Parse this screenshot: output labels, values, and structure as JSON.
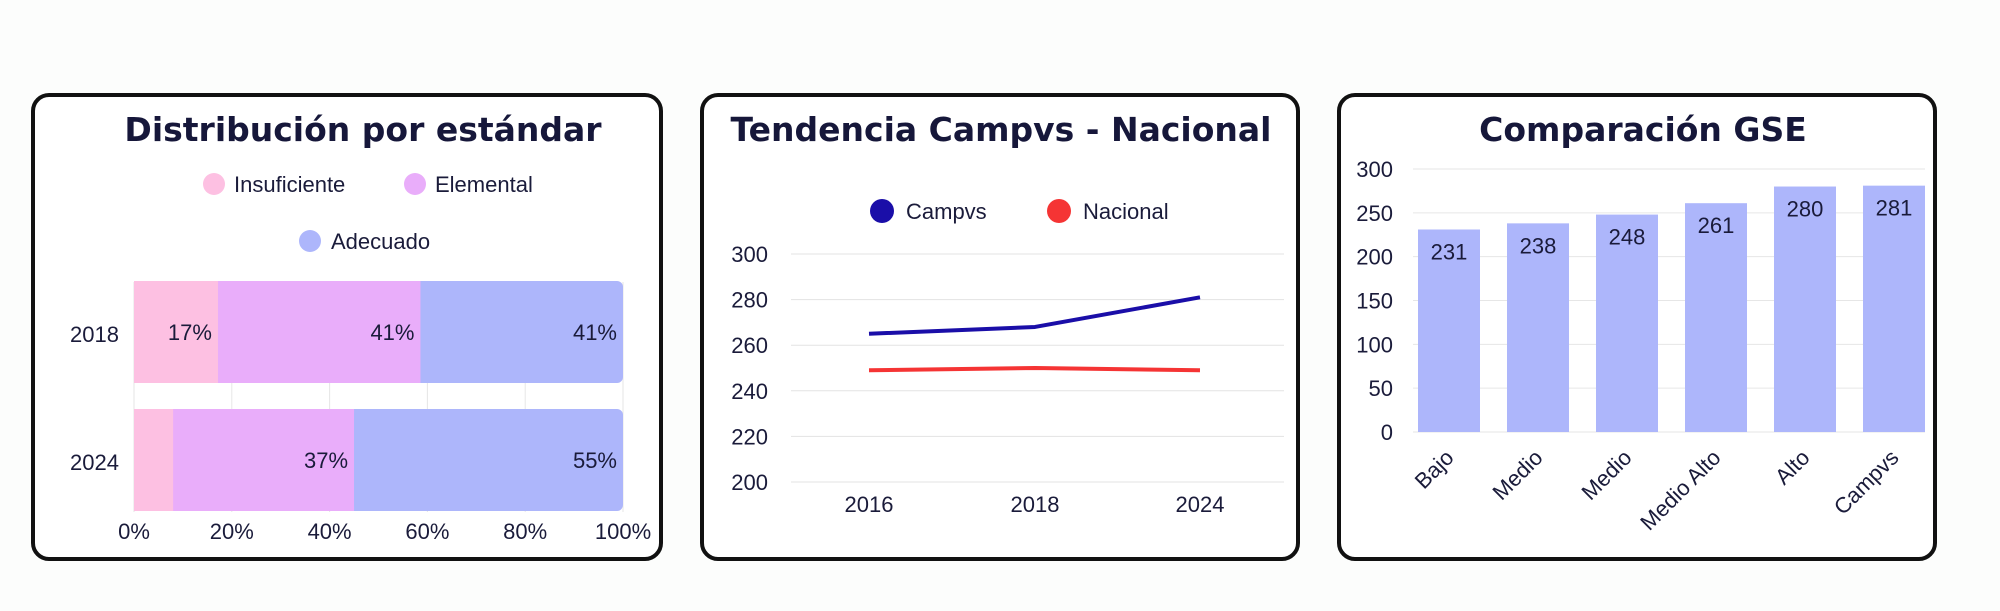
{
  "chart_data": [
    {
      "type": "bar",
      "orientation": "horizontal-stacked-100",
      "title": "Distribución por estándar",
      "categories": [
        "2018",
        "2024"
      ],
      "series": [
        {
          "name": "Insuficiente",
          "color": "#fdc0e2",
          "values": [
            17,
            8
          ],
          "labels": [
            "17%",
            ""
          ]
        },
        {
          "name": "Elemental",
          "color": "#e9adfa",
          "values": [
            41,
            37
          ],
          "labels": [
            "41%",
            "37%"
          ]
        },
        {
          "name": "Adecuado",
          "color": "#adb6fb",
          "values": [
            41,
            55
          ],
          "labels": [
            "41%",
            "55%"
          ]
        }
      ],
      "x_ticks": [
        "0%",
        "20%",
        "40%",
        "60%",
        "80%",
        "100%"
      ],
      "xlim": [
        0,
        100
      ],
      "legend_position": "top"
    },
    {
      "type": "line",
      "title": "Tendencia Campvs - Nacional",
      "categories": [
        "2016",
        "2018",
        "2024"
      ],
      "series": [
        {
          "name": "Campvs",
          "color": "#1a0ea8",
          "values": [
            265,
            268,
            281
          ]
        },
        {
          "name": "Nacional",
          "color": "#f53434",
          "values": [
            249,
            250,
            249
          ]
        }
      ],
      "y_ticks": [
        "200",
        "220",
        "240",
        "260",
        "280",
        "300"
      ],
      "ylim": [
        200,
        300
      ],
      "grid": true,
      "legend_position": "top"
    },
    {
      "type": "bar",
      "title": "Comparación GSE",
      "categories": [
        "Bajo",
        "Medio",
        "Medio",
        "Medio Alto",
        "Alto",
        "Campvs"
      ],
      "values": [
        231,
        238,
        248,
        261,
        280,
        281
      ],
      "value_labels": [
        "231",
        "238",
        "248",
        "261",
        "280",
        "281"
      ],
      "bar_color": "#adb6fb",
      "y_ticks": [
        "0",
        "50",
        "100",
        "150",
        "200",
        "250",
        "300"
      ],
      "ylim": [
        0,
        300
      ],
      "grid": true
    }
  ]
}
